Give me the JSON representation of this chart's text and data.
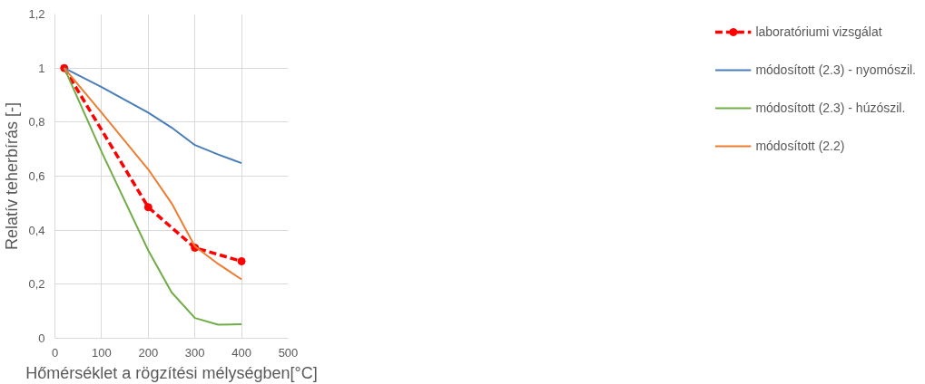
{
  "chart_data": {
    "type": "line",
    "xlabel": "Hőmérséklet a rögzítési mélységben[°C]",
    "ylabel": "Relatív teherbírás [-]",
    "xlim": [
      0,
      500
    ],
    "xticks": [
      0,
      100,
      200,
      300,
      400,
      500
    ],
    "ylim": [
      0,
      1.2
    ],
    "yticks": [
      0,
      {
        "value": 0.2,
        "label": "0,2"
      },
      {
        "value": 0.4,
        "label": "0,4"
      },
      {
        "value": 0.6,
        "label": "0,6"
      },
      {
        "value": 0.8,
        "label": "0,8"
      },
      1,
      {
        "value": 1.2,
        "label": "1,2"
      }
    ],
    "grid": true,
    "legend": "right",
    "series": [
      {
        "name": "laboratóriumi vizsgálat",
        "color": "#ff0000",
        "marker": "circle",
        "line_style": "dashed",
        "x": [
          20,
          200,
          300,
          400
        ],
        "values": [
          1,
          0.485,
          0.335,
          0.285
        ]
      },
      {
        "name": "módosított (2.3) - nyomószil.",
        "color": "#4a7ebb",
        "marker": "none",
        "line_style": "solid",
        "x": [
          20,
          100,
          200,
          250,
          300,
          350,
          400
        ],
        "values": [
          1,
          0.93,
          0.835,
          0.78,
          0.715,
          0.68,
          0.648
        ]
      },
      {
        "name": "módosított (2.3) - húzószil.",
        "color": "#70ad47",
        "marker": "none",
        "line_style": "solid",
        "x": [
          20,
          100,
          200,
          250,
          300,
          350,
          400
        ],
        "values": [
          1,
          0.69,
          0.325,
          0.17,
          0.075,
          0.05,
          0.052
        ]
      },
      {
        "name": "módosított (2.2)",
        "color": "#ed7d31",
        "marker": "none",
        "line_style": "solid",
        "x": [
          20,
          100,
          200,
          250,
          300,
          350,
          400
        ],
        "values": [
          1,
          0.835,
          0.625,
          0.5,
          0.34,
          0.275,
          0.218
        ]
      }
    ]
  }
}
